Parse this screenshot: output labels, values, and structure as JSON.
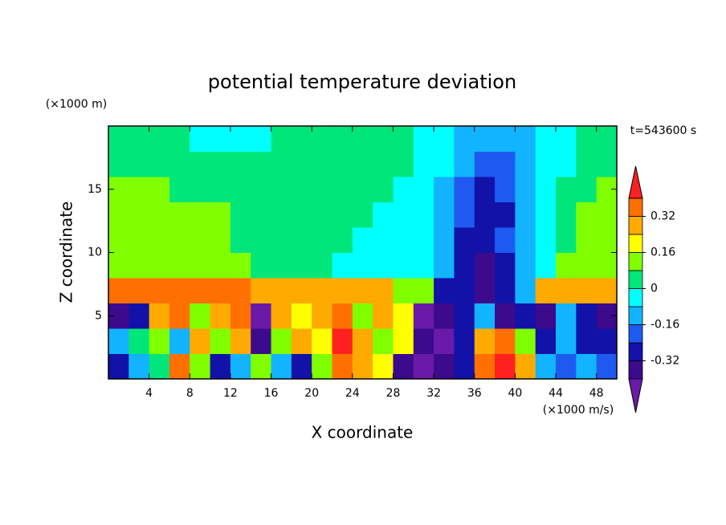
{
  "chart_data": {
    "type": "contour",
    "title": "potential temperature deviation",
    "xlabel": "X coordinate",
    "ylabel": "Z coordinate",
    "x_unit": "(×1000 m/s)",
    "y_unit": "(×1000 m)",
    "time_label": "t=543600 s",
    "xlim": [
      0,
      50
    ],
    "ylim": [
      0,
      20
    ],
    "xticks": [
      4,
      8,
      12,
      16,
      20,
      24,
      28,
      32,
      36,
      40,
      44,
      48
    ],
    "yticks": [
      5,
      10,
      15
    ],
    "x": [
      1,
      3,
      5,
      7,
      9,
      11,
      13,
      15,
      17,
      19,
      21,
      23,
      25,
      27,
      29,
      31,
      33,
      35,
      37,
      39,
      41,
      43,
      45,
      47,
      49
    ],
    "y": [
      1,
      3,
      5,
      7,
      9,
      11,
      13,
      15,
      17,
      19
    ],
    "values": [
      [
        -0.28,
        -0.12,
        0.04,
        0.36,
        0.12,
        -0.28,
        -0.12,
        0.12,
        -0.12,
        -0.28,
        0.12,
        0.36,
        0.28,
        0.2,
        -0.36,
        -0.44,
        -0.36,
        -0.28,
        0.36,
        0.44,
        0.28,
        -0.12,
        -0.2,
        -0.12,
        -0.2
      ],
      [
        -0.12,
        0.04,
        0.12,
        -0.12,
        0.28,
        0.12,
        0.28,
        -0.36,
        0.12,
        0.28,
        0.2,
        0.44,
        0.28,
        0.12,
        0.2,
        -0.36,
        -0.44,
        -0.28,
        0.28,
        0.36,
        0.12,
        -0.28,
        -0.12,
        -0.28,
        -0.28
      ],
      [
        -0.36,
        -0.28,
        0.28,
        0.36,
        0.12,
        0.28,
        0.36,
        -0.44,
        0.28,
        0.2,
        0.28,
        0.36,
        0.12,
        0.28,
        0.2,
        -0.44,
        -0.36,
        -0.28,
        -0.12,
        -0.36,
        -0.28,
        -0.36,
        -0.12,
        -0.28,
        -0.36
      ],
      [
        0.36,
        0.36,
        0.36,
        0.36,
        0.36,
        0.36,
        0.36,
        0.28,
        0.28,
        0.28,
        0.28,
        0.28,
        0.28,
        0.28,
        0.12,
        0.12,
        -0.28,
        -0.28,
        -0.36,
        -0.28,
        -0.12,
        0.28,
        0.28,
        0.28,
        0.28
      ],
      [
        0.12,
        0.12,
        0.12,
        0.12,
        0.12,
        0.12,
        0.12,
        0.04,
        0.04,
        0.04,
        0.04,
        -0.04,
        -0.04,
        -0.04,
        -0.04,
        -0.04,
        -0.12,
        -0.28,
        -0.36,
        -0.28,
        -0.12,
        -0.04,
        0.12,
        0.12,
        0.12
      ],
      [
        0.12,
        0.12,
        0.12,
        0.12,
        0.12,
        0.12,
        0.04,
        0.04,
        0.04,
        0.04,
        0.04,
        0.04,
        -0.04,
        -0.04,
        -0.04,
        -0.04,
        -0.12,
        -0.28,
        -0.28,
        -0.2,
        -0.12,
        -0.04,
        0.04,
        0.12,
        0.12
      ],
      [
        0.12,
        0.12,
        0.12,
        0.12,
        0.12,
        0.12,
        0.04,
        0.04,
        0.04,
        0.04,
        0.04,
        0.04,
        0.04,
        -0.04,
        -0.04,
        -0.04,
        -0.12,
        -0.2,
        -0.28,
        -0.28,
        -0.12,
        -0.04,
        0.04,
        0.12,
        0.12
      ],
      [
        0.12,
        0.12,
        0.12,
        0.04,
        0.04,
        0.04,
        0.04,
        0.04,
        0.04,
        0.04,
        0.04,
        0.04,
        0.04,
        0.04,
        -0.04,
        -0.04,
        -0.12,
        -0.2,
        -0.28,
        -0.2,
        -0.12,
        -0.04,
        0.04,
        0.04,
        0.12
      ],
      [
        0.04,
        0.04,
        0.04,
        0.04,
        0.04,
        0.04,
        0.04,
        0.04,
        0.04,
        0.04,
        0.04,
        0.04,
        0.04,
        0.04,
        0.04,
        -0.04,
        -0.04,
        -0.12,
        -0.2,
        -0.2,
        -0.12,
        -0.04,
        -0.04,
        0.04,
        0.04
      ],
      [
        0.04,
        0.04,
        0.04,
        0.04,
        -0.04,
        -0.04,
        -0.04,
        -0.04,
        0.04,
        0.04,
        0.04,
        0.04,
        0.04,
        0.04,
        0.04,
        -0.04,
        -0.04,
        -0.12,
        -0.12,
        -0.12,
        -0.12,
        -0.04,
        -0.04,
        0.04,
        0.04
      ]
    ],
    "levels": [
      -0.4,
      -0.32,
      -0.24,
      -0.16,
      -0.08,
      0,
      0.08,
      0.16,
      0.24,
      0.32,
      0.4
    ],
    "colorbar_ticks": [
      -0.32,
      -0.16,
      0,
      0.16,
      0.32
    ],
    "colors": [
      "#6a1aa8",
      "#3c0a8c",
      "#1212a8",
      "#1e5af0",
      "#12b4ff",
      "#00ffff",
      "#00e67a",
      "#80ff00",
      "#ffff00",
      "#ffaa00",
      "#ff7000",
      "#ff2020",
      "#f4a8b0"
    ]
  }
}
